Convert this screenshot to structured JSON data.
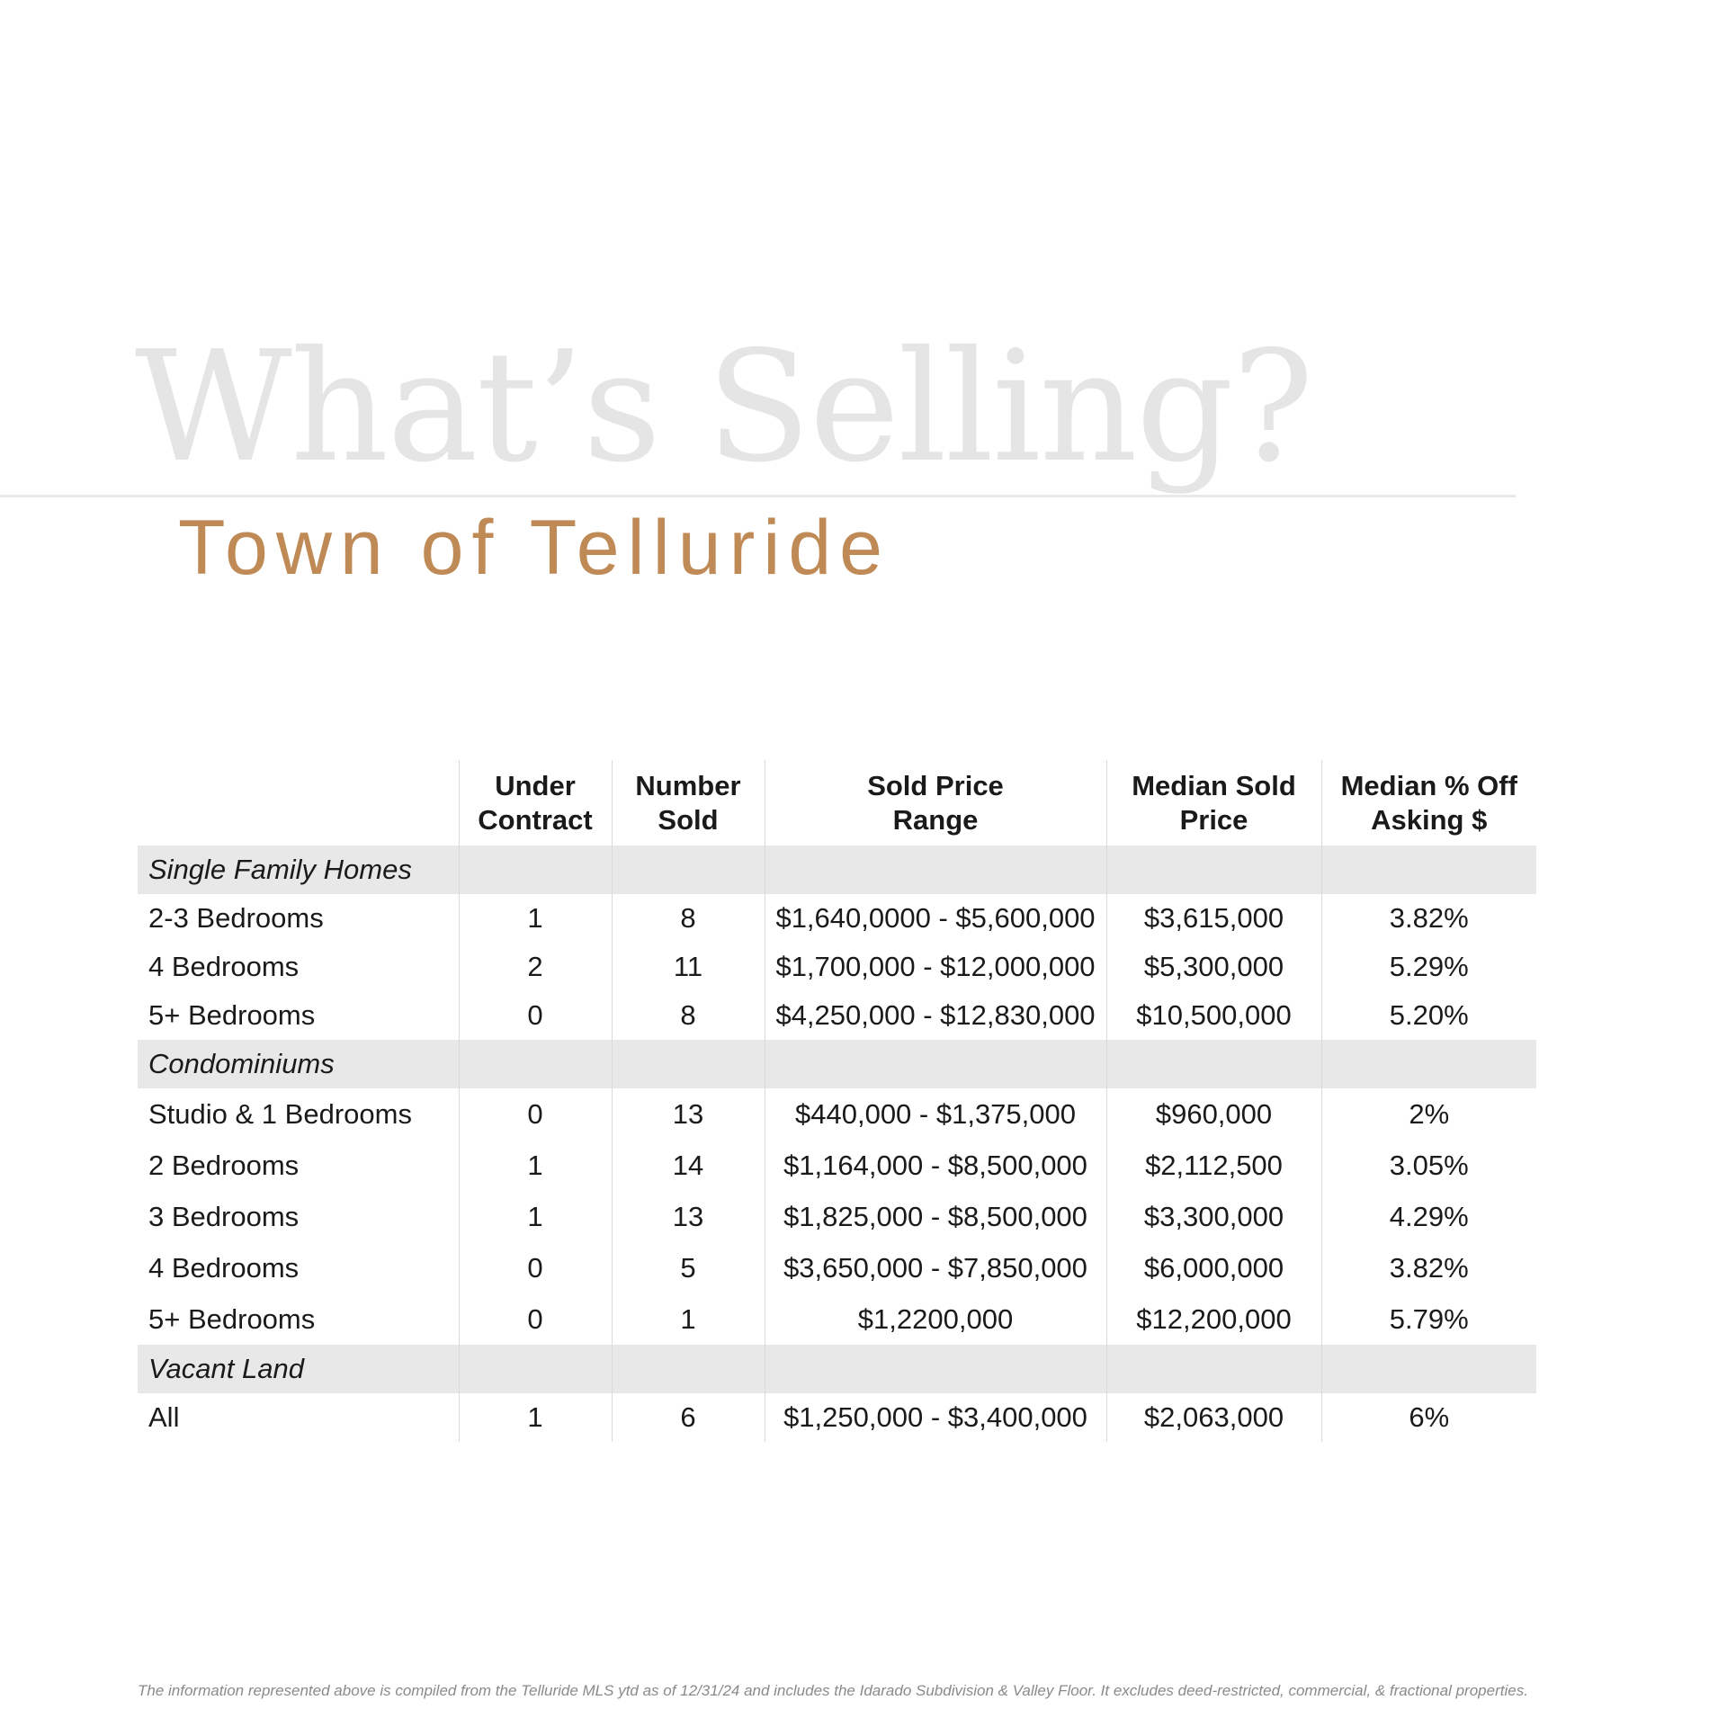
{
  "header": {
    "title": "What’s Selling?",
    "subtitle": "Town of Telluride"
  },
  "table": {
    "columns": [
      "",
      "Under Contract",
      "Number Sold",
      "Sold Price Range",
      "Median Sold Price",
      "Median % Off Asking $"
    ],
    "col_lines": [
      [
        "",
        ""
      ],
      [
        "Under",
        "Contract"
      ],
      [
        "Number",
        "Sold"
      ],
      [
        "Sold Price",
        "Range"
      ],
      [
        "Median Sold",
        "Price"
      ],
      [
        "Median % Off",
        "Asking $"
      ]
    ],
    "sections": [
      {
        "name": "Single Family Homes",
        "rows": [
          [
            "2-3 Bedrooms",
            "1",
            "8",
            "$1,640,0000 - $5,600,000",
            "$3,615,000",
            "3.82%"
          ],
          [
            "4 Bedrooms",
            "2",
            "11",
            "$1,700,000 - $12,000,000",
            "$5,300,000",
            "5.29%"
          ],
          [
            "5+ Bedrooms",
            "0",
            "8",
            "$4,250,000 - $12,830,000",
            "$10,500,000",
            "5.20%"
          ]
        ]
      },
      {
        "name": "Condominiums",
        "rows": [
          [
            "Studio & 1 Bedrooms",
            "0",
            "13",
            "$440,000 - $1,375,000",
            "$960,000",
            "2%"
          ],
          [
            "2 Bedrooms",
            "1",
            "14",
            "$1,164,000 - $8,500,000",
            "$2,112,500",
            "3.05%"
          ],
          [
            "3 Bedrooms",
            "1",
            "13",
            "$1,825,000 - $8,500,000",
            "$3,300,000",
            "4.29%"
          ],
          [
            "4 Bedrooms",
            "0",
            "5",
            "$3,650,000 - $7,850,000",
            "$6,000,000",
            "3.82%"
          ],
          [
            "5+ Bedrooms",
            "0",
            "1",
            "$1,2200,000",
            "$12,200,000",
            "5.79%"
          ]
        ]
      },
      {
        "name": "Vacant Land",
        "rows": [
          [
            "All",
            "1",
            "6",
            "$1,250,000 - $3,400,000",
            "$2,063,000",
            "6%"
          ]
        ]
      }
    ]
  },
  "footnote": "The information represented above is compiled from the Telluride MLS ytd as of 12/31/24 and includes the Idarado Subdivision & Valley Floor. It excludes deed-restricted, commercial, & fractional properties."
}
